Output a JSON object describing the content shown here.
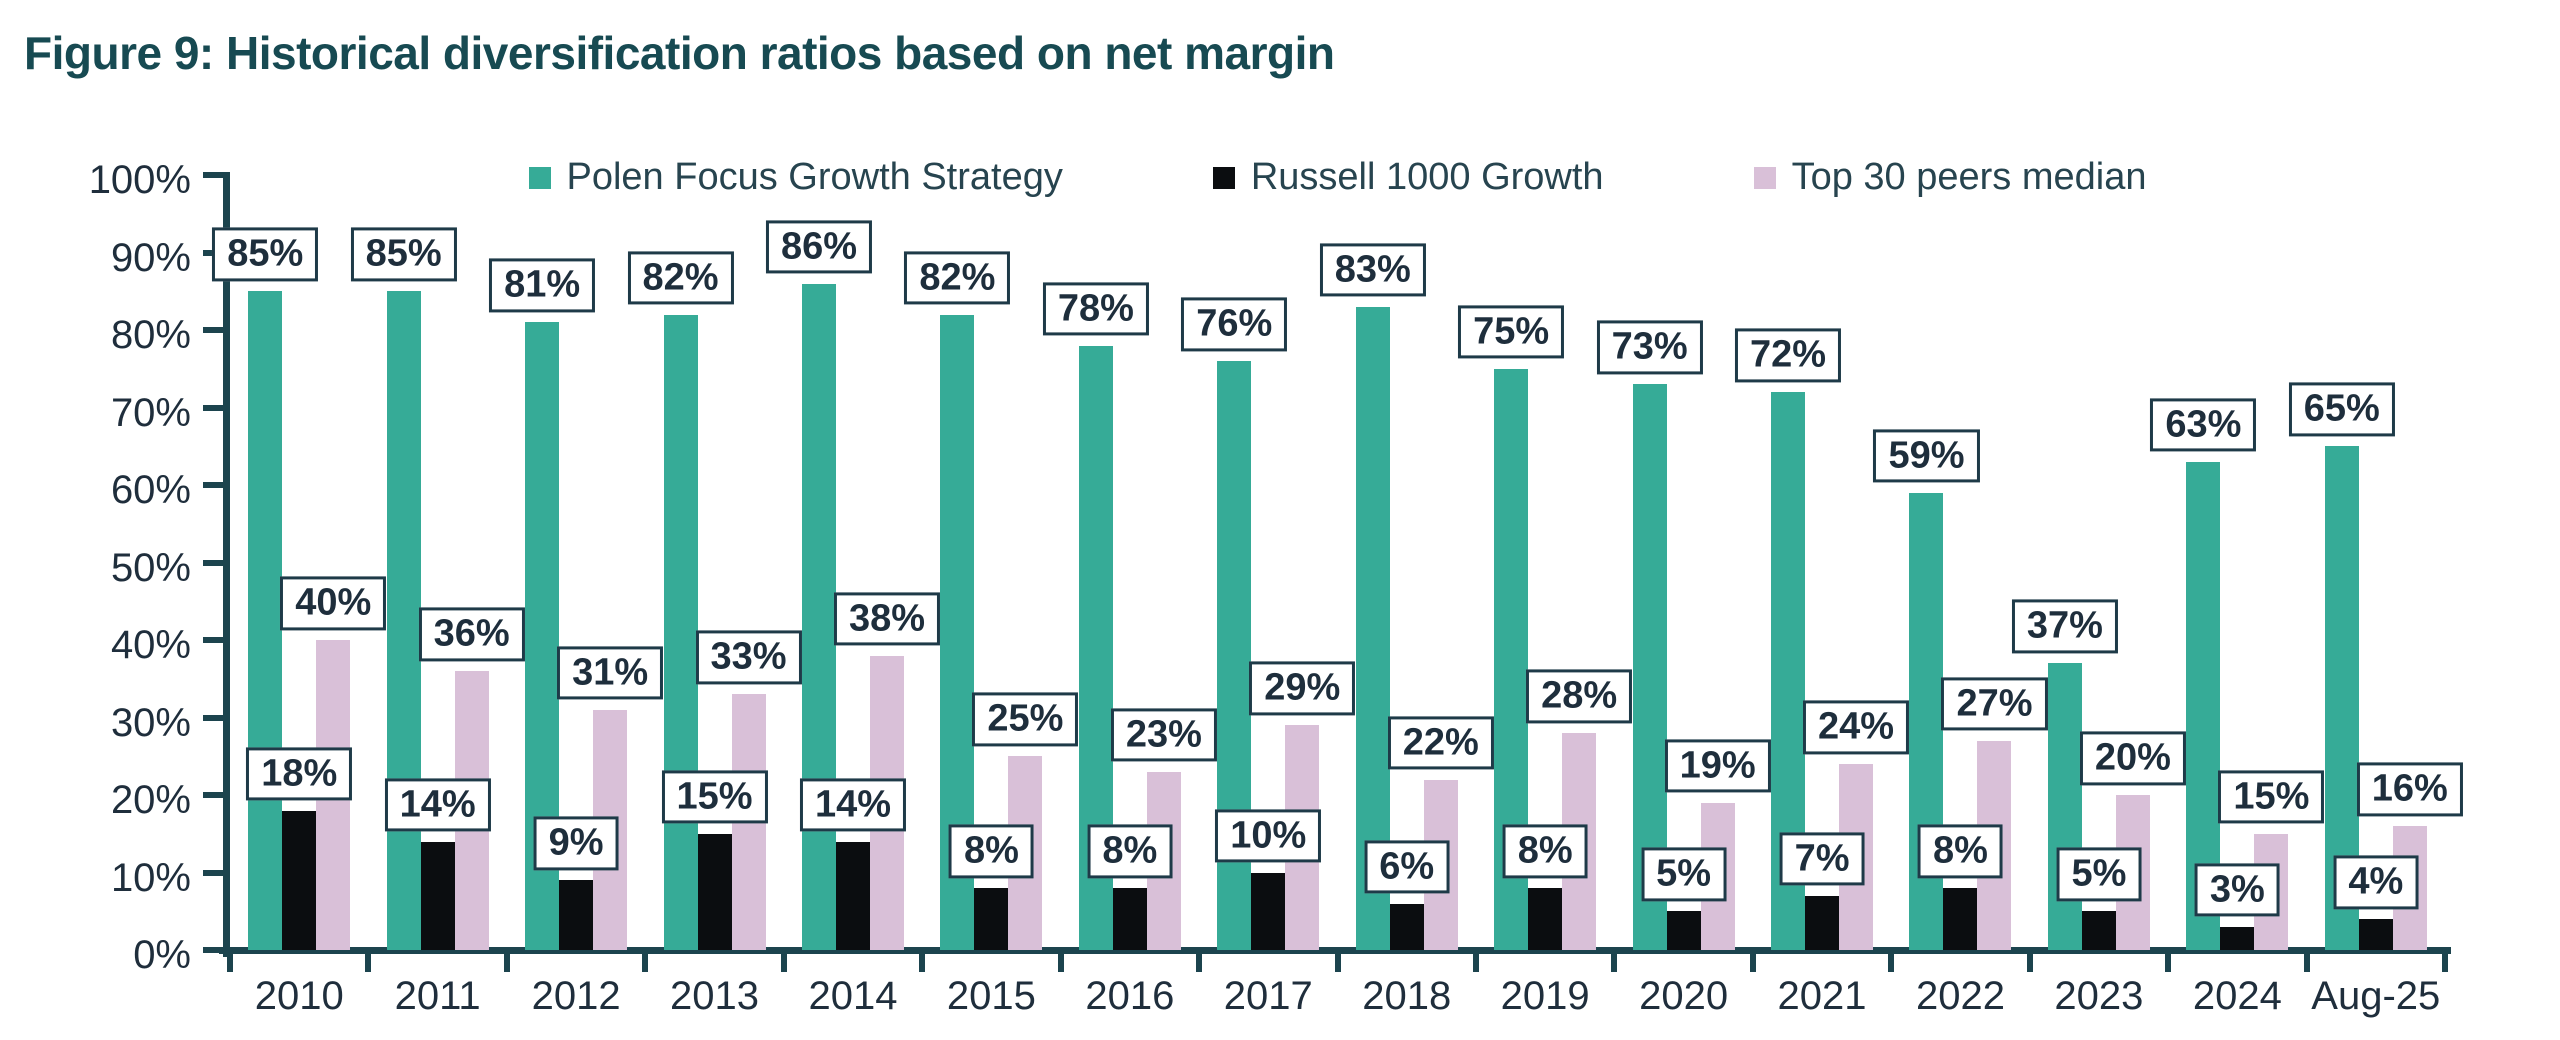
{
  "title": "Figure 9: Historical diversification ratios based on net margin",
  "colors": {
    "teal": "#36ab97",
    "black": "#0b0d10",
    "pink": "#d9c0d8",
    "axis": "#1c444e",
    "title_text": "#174a52",
    "tick_text": "#1f2e3c",
    "label_text": "#1e2e3c",
    "label_border": "#1e3a48"
  },
  "chart_data": {
    "type": "bar",
    "title": "Figure 9: Historical diversification ratios based on net margin",
    "categories": [
      "2010",
      "2011",
      "2012",
      "2013",
      "2014",
      "2015",
      "2016",
      "2017",
      "2018",
      "2019",
      "2020",
      "2021",
      "2022",
      "2023",
      "2024",
      "Aug-25"
    ],
    "series": [
      {
        "name": "Polen Focus Growth Strategy",
        "color_key": "teal",
        "values": [
          85,
          85,
          81,
          82,
          86,
          82,
          78,
          76,
          83,
          75,
          73,
          72,
          59,
          37,
          63,
          65
        ]
      },
      {
        "name": "Russell 1000 Growth",
        "color_key": "black",
        "values": [
          18,
          14,
          9,
          15,
          14,
          8,
          8,
          10,
          6,
          8,
          5,
          7,
          8,
          5,
          3,
          4
        ]
      },
      {
        "name": "Top 30 peers median",
        "color_key": "pink",
        "values": [
          40,
          36,
          31,
          33,
          38,
          25,
          23,
          29,
          22,
          28,
          19,
          24,
          27,
          20,
          15,
          16
        ]
      }
    ],
    "data_label_suffix": "%",
    "data_labels_boxed": true,
    "xlabel": "",
    "ylabel": "",
    "ylim": [
      0,
      100
    ],
    "y_tick_step": 10,
    "y_tick_labels": [
      "0%",
      "10%",
      "20%",
      "30%",
      "40%",
      "50%",
      "60%",
      "70%",
      "80%",
      "90%",
      "100%"
    ],
    "grid": false,
    "legend_position": "top"
  }
}
